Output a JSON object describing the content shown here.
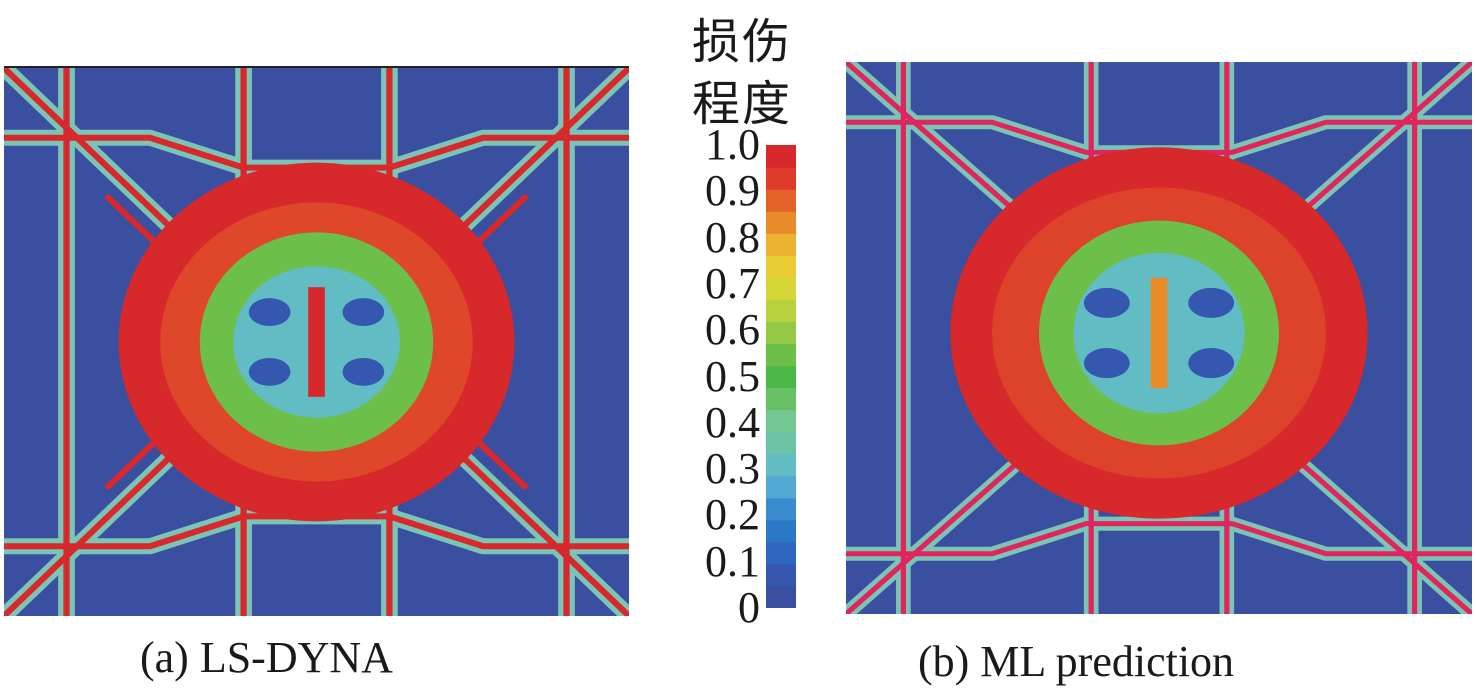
{
  "chart_data": {
    "type": "heatmap",
    "legend": {
      "title_line1": "损伤",
      "title_line2": "程度",
      "ticks": [
        "1.0",
        "0.9",
        "0.8",
        "0.7",
        "0.6",
        "0.5",
        "0.4",
        "0.3",
        "0.2",
        "0.1",
        "0"
      ],
      "range": [
        0,
        1.0
      ],
      "levels": 21,
      "colors_low_to_high": [
        "#3a4fa0",
        "#3557b0",
        "#2f66bf",
        "#2b78c6",
        "#3a8cd0",
        "#52a9d4",
        "#61bcc4",
        "#6cc3a8",
        "#73c790",
        "#67c062",
        "#4db848",
        "#6cc04a",
        "#93c947",
        "#b7d23d",
        "#d6d737",
        "#e9cc33",
        "#ecb12e",
        "#ea8b2a",
        "#e5612a",
        "#df3b2b",
        "#d7282b"
      ]
    },
    "panels": [
      {
        "id": "a",
        "caption": "(a) LS-DYNA"
      },
      {
        "id": "b",
        "caption": "(b) ML prediction"
      }
    ]
  }
}
